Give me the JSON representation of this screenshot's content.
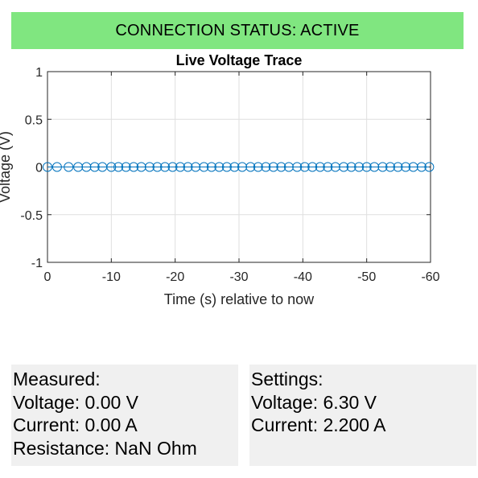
{
  "status": {
    "text": "CONNECTION STATUS: ACTIVE",
    "color": "#80e680"
  },
  "chart_data": {
    "type": "line",
    "title": "Live Voltage Trace",
    "xlabel": "Time (s) relative to now",
    "ylabel": "Voltage (V)",
    "xlim": [
      0,
      -60
    ],
    "ylim": [
      -1,
      1
    ],
    "x_direction": "reversed",
    "x_ticks": [
      0,
      -10,
      -20,
      -30,
      -40,
      -50,
      -60
    ],
    "x_tick_labels": [
      "0",
      "-10",
      "-20",
      "-30",
      "-40",
      "-50",
      "-60"
    ],
    "y_ticks": [
      1,
      0.5,
      0,
      -0.5,
      -1
    ],
    "y_tick_labels": [
      "1",
      "0.5",
      "0",
      "-0.5",
      "-1"
    ],
    "grid": true,
    "marker": "circle",
    "series_color": "#0072bd",
    "x": [
      0,
      -1.5,
      -3.3,
      -4.8,
      -6.1,
      -7.4,
      -8.6,
      -10.0,
      -11.1,
      -12.3,
      -13.5,
      -14.7,
      -16.0,
      -17.2,
      -18.4,
      -19.6,
      -20.8,
      -22.0,
      -23.2,
      -24.5,
      -25.7,
      -26.9,
      -28.1,
      -29.3,
      -30.5,
      -31.8,
      -33.0,
      -34.2,
      -35.4,
      -36.6,
      -37.8,
      -39.1,
      -40.3,
      -41.5,
      -42.7,
      -43.9,
      -45.1,
      -46.4,
      -47.6,
      -48.8,
      -50.0,
      -51.2,
      -52.5,
      -53.7,
      -54.9,
      -56.1,
      -57.3,
      -58.6,
      -59.8
    ],
    "y": [
      0,
      0,
      0,
      0,
      0,
      0,
      0,
      0,
      0,
      0,
      0,
      0,
      0,
      0,
      0,
      0,
      0,
      0,
      0,
      0,
      0,
      0,
      0,
      0,
      0,
      0,
      0,
      0,
      0,
      0,
      0,
      0,
      0,
      0,
      0,
      0,
      0,
      0,
      0,
      0,
      0,
      0,
      0,
      0,
      0,
      0,
      0,
      0,
      0
    ]
  },
  "measured": {
    "heading": "Measured:",
    "voltage": "Voltage: 0.00 V",
    "current": "Current: 0.00 A",
    "resistance": "Resistance: NaN Ohm"
  },
  "settings": {
    "heading": "Settings:",
    "voltage": "Voltage: 6.30 V",
    "current": "Current: 2.200 A"
  }
}
